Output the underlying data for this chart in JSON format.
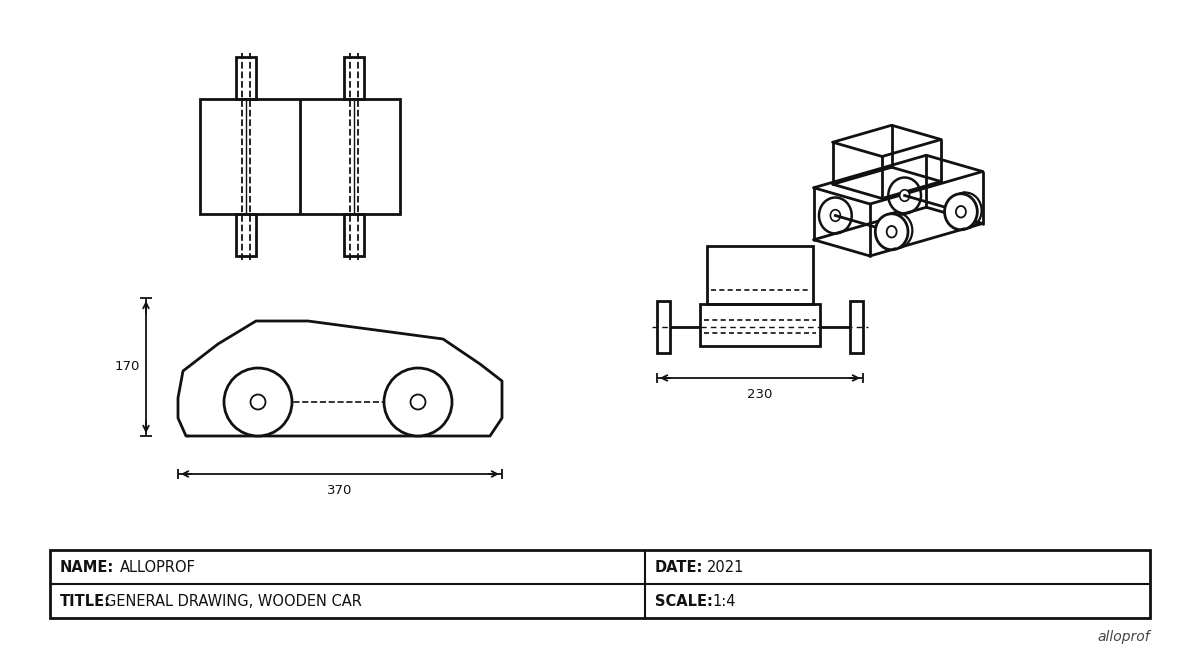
{
  "bg_color": "#ffffff",
  "line_color": "#111111",
  "title_block": {
    "name_label": "NAME:",
    "name_value": "ALLOPROF",
    "date_label": "DATE:",
    "date_value": "2021",
    "title_label": "TITLE:",
    "title_value": "GENERAL DRAWING, WOODEN CAR",
    "scale_label": "SCALE:",
    "scale_value": "1:4",
    "watermark": "alloprof"
  },
  "dim_170": "170",
  "dim_370": "370",
  "dim_230": "230"
}
